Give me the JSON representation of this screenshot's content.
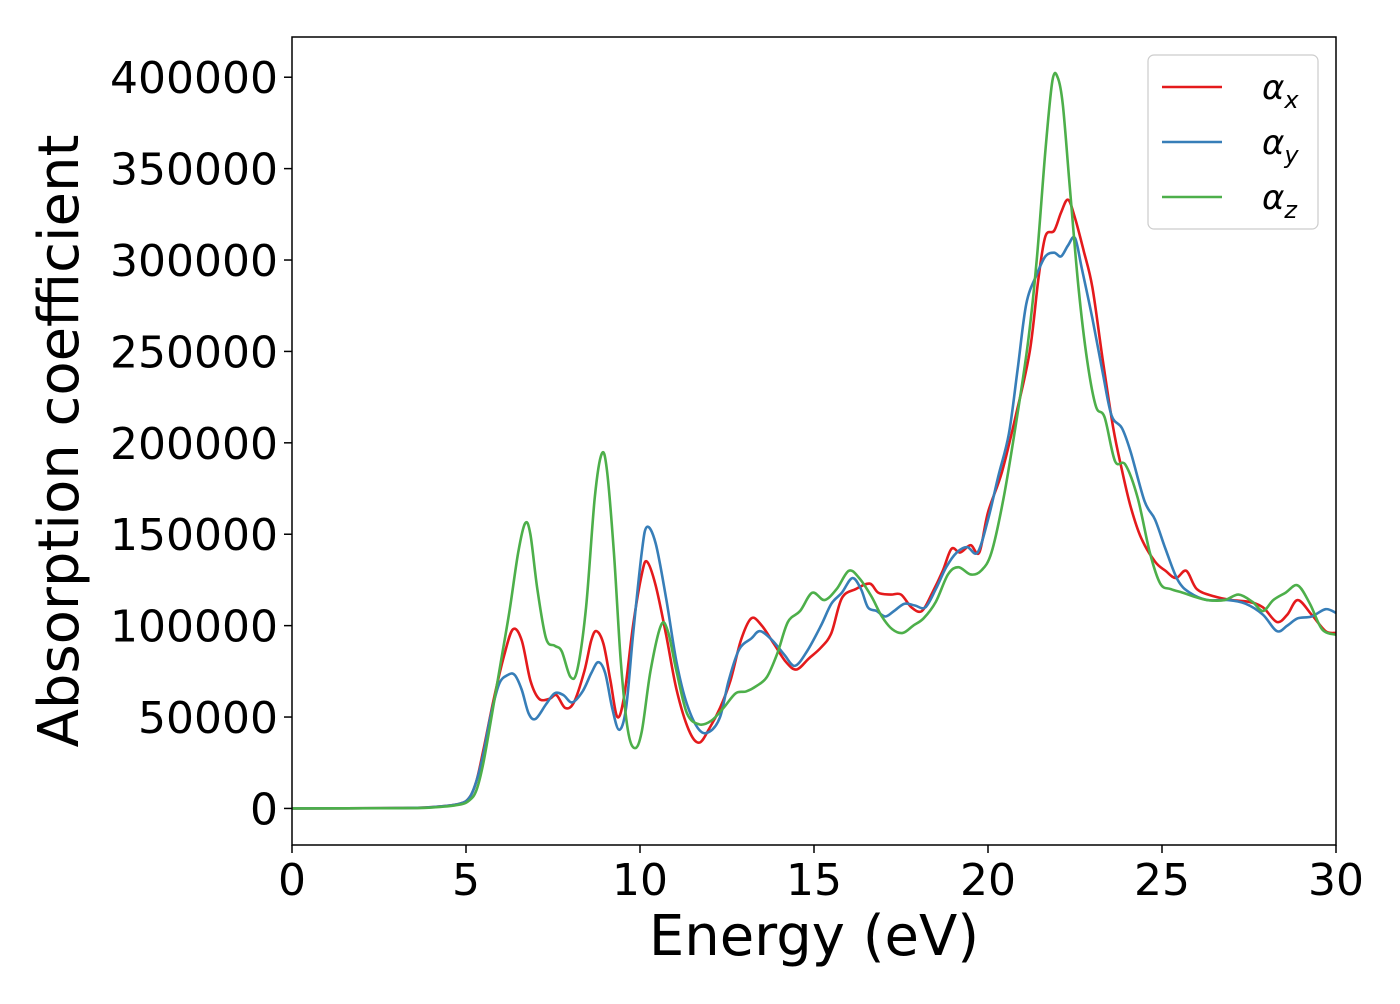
{
  "chart_data": {
    "type": "line",
    "title": "",
    "xlabel": "Energy (eV)",
    "ylabel": "Absorption coefficient",
    "xlim": [
      0,
      30
    ],
    "ylim": [
      -20000,
      422000
    ],
    "x_ticks": [
      0,
      5,
      10,
      15,
      20,
      25,
      30
    ],
    "y_ticks": [
      0,
      50000,
      100000,
      150000,
      200000,
      250000,
      300000,
      350000,
      400000
    ],
    "x_tick_labels": [
      "0",
      "5",
      "10",
      "15",
      "20",
      "25",
      "30"
    ],
    "y_tick_labels": [
      "0",
      "50000",
      "100000",
      "150000",
      "200000",
      "250000",
      "300000",
      "350000",
      "400000"
    ],
    "legend_position": "upper right",
    "legend": [
      {
        "base": "α",
        "sub": "x",
        "color": "#e41a1c"
      },
      {
        "base": "α",
        "sub": "y",
        "color": "#377eb8"
      },
      {
        "base": "α",
        "sub": "z",
        "color": "#4daf4a"
      }
    ],
    "series": [
      {
        "color": "#e41a1c",
        "points": [
          [
            0,
            0
          ],
          [
            3,
            200
          ],
          [
            4,
            700
          ],
          [
            4.8,
            2500
          ],
          [
            5.1,
            6000
          ],
          [
            5.3,
            15000
          ],
          [
            5.5,
            32000
          ],
          [
            5.8,
            60000
          ],
          [
            6.1,
            84000
          ],
          [
            6.35,
            98000
          ],
          [
            6.6,
            92000
          ],
          [
            6.85,
            70000
          ],
          [
            7.1,
            60000
          ],
          [
            7.4,
            60000
          ],
          [
            7.6,
            62000
          ],
          [
            7.85,
            55000
          ],
          [
            8.1,
            58000
          ],
          [
            8.4,
            75000
          ],
          [
            8.6,
            92000
          ],
          [
            8.75,
            97000
          ],
          [
            8.95,
            90000
          ],
          [
            9.15,
            70000
          ],
          [
            9.35,
            50000
          ],
          [
            9.55,
            62000
          ],
          [
            9.8,
            100000
          ],
          [
            10.05,
            128000
          ],
          [
            10.2,
            135000
          ],
          [
            10.45,
            122000
          ],
          [
            10.75,
            95000
          ],
          [
            11.05,
            65000
          ],
          [
            11.4,
            43000
          ],
          [
            11.7,
            36000
          ],
          [
            12.0,
            44000
          ],
          [
            12.3,
            55000
          ],
          [
            12.6,
            70000
          ],
          [
            12.9,
            92000
          ],
          [
            13.2,
            104000
          ],
          [
            13.5,
            100000
          ],
          [
            13.85,
            90000
          ],
          [
            14.2,
            80000
          ],
          [
            14.5,
            76000
          ],
          [
            14.85,
            82000
          ],
          [
            15.2,
            88000
          ],
          [
            15.5,
            96000
          ],
          [
            15.8,
            115000
          ],
          [
            16.2,
            120000
          ],
          [
            16.6,
            123000
          ],
          [
            16.85,
            118000
          ],
          [
            17.2,
            117000
          ],
          [
            17.5,
            117000
          ],
          [
            17.8,
            110000
          ],
          [
            18.1,
            108000
          ],
          [
            18.4,
            118000
          ],
          [
            18.7,
            130000
          ],
          [
            18.95,
            142000
          ],
          [
            19.2,
            140000
          ],
          [
            19.5,
            144000
          ],
          [
            19.75,
            140000
          ],
          [
            20.0,
            162000
          ],
          [
            20.4,
            184000
          ],
          [
            20.8,
            215000
          ],
          [
            21.2,
            250000
          ],
          [
            21.45,
            290000
          ],
          [
            21.65,
            313000
          ],
          [
            21.9,
            316000
          ],
          [
            22.1,
            326000
          ],
          [
            22.3,
            333000
          ],
          [
            22.5,
            323000
          ],
          [
            22.75,
            305000
          ],
          [
            23.0,
            285000
          ],
          [
            23.3,
            245000
          ],
          [
            23.6,
            208000
          ],
          [
            23.85,
            185000
          ],
          [
            24.1,
            165000
          ],
          [
            24.4,
            148000
          ],
          [
            24.8,
            135000
          ],
          [
            25.1,
            130000
          ],
          [
            25.4,
            126000
          ],
          [
            25.7,
            130000
          ],
          [
            26.0,
            120000
          ],
          [
            26.5,
            116000
          ],
          [
            27.0,
            114000
          ],
          [
            27.5,
            113000
          ],
          [
            27.9,
            110000
          ],
          [
            28.3,
            102000
          ],
          [
            28.6,
            106000
          ],
          [
            28.9,
            114000
          ],
          [
            29.3,
            106000
          ],
          [
            29.7,
            97000
          ],
          [
            30,
            96000
          ]
        ]
      },
      {
        "color": "#377eb8",
        "points": [
          [
            0,
            0
          ],
          [
            3,
            200
          ],
          [
            4,
            700
          ],
          [
            4.8,
            2500
          ],
          [
            5.1,
            6000
          ],
          [
            5.3,
            15000
          ],
          [
            5.5,
            30000
          ],
          [
            5.7,
            50000
          ],
          [
            5.95,
            68000
          ],
          [
            6.2,
            73000
          ],
          [
            6.4,
            73000
          ],
          [
            6.6,
            65000
          ],
          [
            6.8,
            52000
          ],
          [
            7.0,
            49000
          ],
          [
            7.3,
            57000
          ],
          [
            7.55,
            63000
          ],
          [
            7.8,
            62000
          ],
          [
            8.05,
            58000
          ],
          [
            8.35,
            64000
          ],
          [
            8.6,
            74000
          ],
          [
            8.8,
            80000
          ],
          [
            9.0,
            74000
          ],
          [
            9.2,
            55000
          ],
          [
            9.4,
            43000
          ],
          [
            9.6,
            55000
          ],
          [
            9.8,
            95000
          ],
          [
            10.05,
            140000
          ],
          [
            10.2,
            154000
          ],
          [
            10.45,
            145000
          ],
          [
            10.75,
            115000
          ],
          [
            11.05,
            80000
          ],
          [
            11.35,
            57000
          ],
          [
            11.7,
            43000
          ],
          [
            12.0,
            42000
          ],
          [
            12.3,
            50000
          ],
          [
            12.55,
            70000
          ],
          [
            12.85,
            87000
          ],
          [
            13.2,
            93000
          ],
          [
            13.45,
            97000
          ],
          [
            13.8,
            92000
          ],
          [
            14.15,
            84000
          ],
          [
            14.45,
            78000
          ],
          [
            14.8,
            86000
          ],
          [
            15.2,
            100000
          ],
          [
            15.5,
            112000
          ],
          [
            15.8,
            118000
          ],
          [
            16.1,
            126000
          ],
          [
            16.35,
            120000
          ],
          [
            16.55,
            110000
          ],
          [
            16.8,
            108000
          ],
          [
            17.05,
            105000
          ],
          [
            17.3,
            108000
          ],
          [
            17.6,
            112000
          ],
          [
            17.9,
            111000
          ],
          [
            18.2,
            110000
          ],
          [
            18.5,
            120000
          ],
          [
            18.8,
            132000
          ],
          [
            19.1,
            140000
          ],
          [
            19.4,
            143000
          ],
          [
            19.7,
            140000
          ],
          [
            20.0,
            158000
          ],
          [
            20.3,
            182000
          ],
          [
            20.6,
            205000
          ],
          [
            20.85,
            240000
          ],
          [
            21.1,
            276000
          ],
          [
            21.4,
            292000
          ],
          [
            21.65,
            302000
          ],
          [
            21.9,
            304000
          ],
          [
            22.1,
            302000
          ],
          [
            22.3,
            308000
          ],
          [
            22.5,
            312000
          ],
          [
            22.7,
            295000
          ],
          [
            23.0,
            268000
          ],
          [
            23.3,
            238000
          ],
          [
            23.55,
            215000
          ],
          [
            23.85,
            208000
          ],
          [
            24.1,
            195000
          ],
          [
            24.5,
            168000
          ],
          [
            24.8,
            158000
          ],
          [
            25.1,
            142000
          ],
          [
            25.45,
            125000
          ],
          [
            25.8,
            118000
          ],
          [
            26.3,
            114000
          ],
          [
            26.9,
            114000
          ],
          [
            27.4,
            112000
          ],
          [
            27.9,
            106000
          ],
          [
            28.3,
            97000
          ],
          [
            28.6,
            100000
          ],
          [
            28.9,
            104000
          ],
          [
            29.3,
            105000
          ],
          [
            29.7,
            109000
          ],
          [
            30,
            107000
          ]
        ]
      },
      {
        "color": "#4daf4a",
        "points": [
          [
            0,
            0
          ],
          [
            3,
            150
          ],
          [
            4,
            500
          ],
          [
            4.8,
            2000
          ],
          [
            5.1,
            4500
          ],
          [
            5.3,
            10000
          ],
          [
            5.5,
            25000
          ],
          [
            5.75,
            52000
          ],
          [
            6.0,
            80000
          ],
          [
            6.25,
            108000
          ],
          [
            6.5,
            140000
          ],
          [
            6.7,
            156000
          ],
          [
            6.85,
            150000
          ],
          [
            7.05,
            120000
          ],
          [
            7.3,
            93000
          ],
          [
            7.55,
            89000
          ],
          [
            7.75,
            86000
          ],
          [
            8.0,
            72000
          ],
          [
            8.2,
            76000
          ],
          [
            8.45,
            110000
          ],
          [
            8.7,
            170000
          ],
          [
            8.9,
            194000
          ],
          [
            9.05,
            185000
          ],
          [
            9.25,
            140000
          ],
          [
            9.45,
            80000
          ],
          [
            9.65,
            43000
          ],
          [
            9.85,
            33000
          ],
          [
            10.05,
            42000
          ],
          [
            10.3,
            75000
          ],
          [
            10.6,
            100000
          ],
          [
            10.8,
            97000
          ],
          [
            11.05,
            75000
          ],
          [
            11.35,
            52000
          ],
          [
            11.7,
            46000
          ],
          [
            12.05,
            48000
          ],
          [
            12.4,
            55000
          ],
          [
            12.75,
            63000
          ],
          [
            13.05,
            64000
          ],
          [
            13.35,
            67000
          ],
          [
            13.65,
            72000
          ],
          [
            13.95,
            85000
          ],
          [
            14.25,
            102000
          ],
          [
            14.6,
            108000
          ],
          [
            14.95,
            118000
          ],
          [
            15.3,
            114000
          ],
          [
            15.65,
            120000
          ],
          [
            16.0,
            130000
          ],
          [
            16.3,
            126000
          ],
          [
            16.65,
            116000
          ],
          [
            16.95,
            105000
          ],
          [
            17.25,
            98000
          ],
          [
            17.55,
            96000
          ],
          [
            17.85,
            100000
          ],
          [
            18.15,
            104000
          ],
          [
            18.5,
            113000
          ],
          [
            18.85,
            128000
          ],
          [
            19.15,
            132000
          ],
          [
            19.5,
            128000
          ],
          [
            19.8,
            130000
          ],
          [
            20.1,
            140000
          ],
          [
            20.45,
            170000
          ],
          [
            20.8,
            210000
          ],
          [
            21.15,
            255000
          ],
          [
            21.4,
            300000
          ],
          [
            21.65,
            360000
          ],
          [
            21.85,
            398000
          ],
          [
            22.0,
            400000
          ],
          [
            22.15,
            385000
          ],
          [
            22.35,
            340000
          ],
          [
            22.6,
            285000
          ],
          [
            22.85,
            245000
          ],
          [
            23.1,
            220000
          ],
          [
            23.35,
            214000
          ],
          [
            23.65,
            190000
          ],
          [
            23.95,
            188000
          ],
          [
            24.3,
            170000
          ],
          [
            24.65,
            140000
          ],
          [
            24.95,
            123000
          ],
          [
            25.25,
            120000
          ],
          [
            25.6,
            118000
          ],
          [
            25.9,
            116000
          ],
          [
            26.3,
            114000
          ],
          [
            26.8,
            114000
          ],
          [
            27.2,
            117000
          ],
          [
            27.6,
            113000
          ],
          [
            27.9,
            108000
          ],
          [
            28.2,
            114000
          ],
          [
            28.55,
            118000
          ],
          [
            28.9,
            122000
          ],
          [
            29.25,
            112000
          ],
          [
            29.6,
            98000
          ],
          [
            30,
            95000
          ]
        ]
      }
    ]
  }
}
